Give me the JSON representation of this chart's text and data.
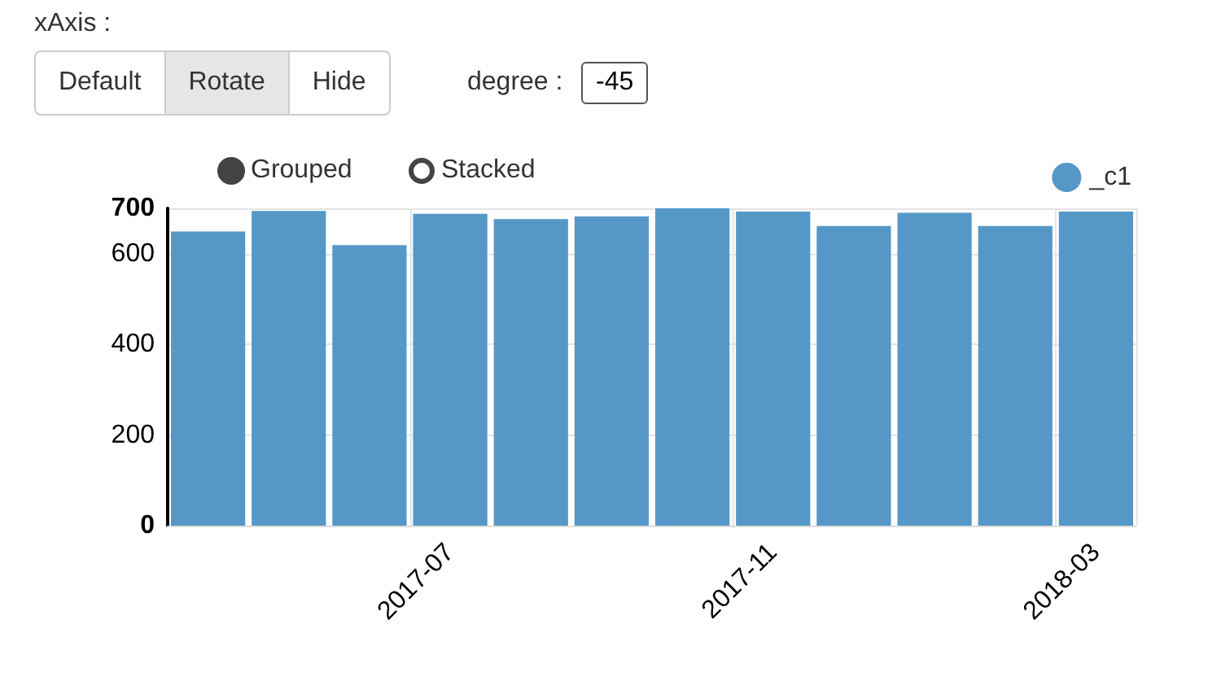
{
  "chart_data": {
    "type": "bar",
    "categories": [
      null,
      null,
      null,
      "2017-07",
      null,
      null,
      null,
      "2017-11",
      null,
      null,
      null,
      "2018-03"
    ],
    "series": [
      {
        "name": "_c1",
        "color": "#5598c8",
        "values": [
          649,
          694,
          619,
          688,
          676,
          682,
          700,
          693,
          661,
          690,
          661,
          693
        ]
      }
    ],
    "ylim": [
      0,
      700
    ],
    "yticks": [
      0,
      200,
      400,
      600,
      700
    ],
    "grid": true,
    "legend": "top right",
    "annotations": [
      "xAxis :",
      "Default",
      "Rotate",
      "Hide",
      "degree :",
      "-45",
      "Grouped",
      "Stacked"
    ]
  }
}
